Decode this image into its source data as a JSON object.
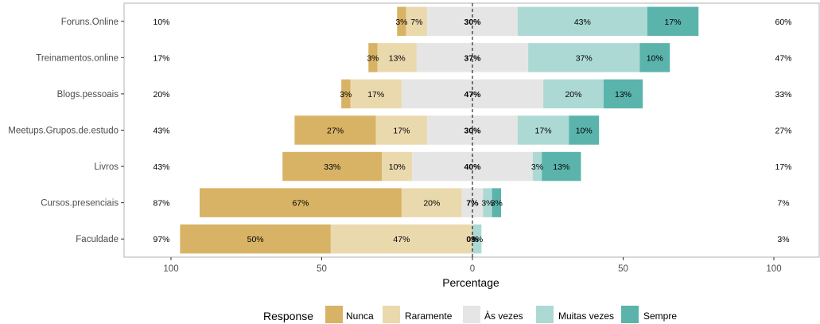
{
  "chart_data": {
    "type": "bar",
    "orientation": "horizontal-diverging",
    "categories": [
      "Foruns.Online",
      "Treinamentos.online",
      "Blogs.pessoais",
      "Meetups.Grupos.de.estudo",
      "Livros",
      "Cursos.presenciais",
      "Faculdade"
    ],
    "series": [
      {
        "name": "Nunca",
        "color": "#D8B365",
        "values": [
          3,
          3,
          3,
          27,
          33,
          67,
          50
        ]
      },
      {
        "name": "Raramente",
        "color": "#EBD9AE",
        "values": [
          7,
          13,
          17,
          17,
          10,
          20,
          47
        ]
      },
      {
        "name": "Às vezes",
        "color": "#E5E5E5",
        "values": [
          30,
          37,
          47,
          30,
          40,
          7,
          0
        ]
      },
      {
        "name": "Muitas vezes",
        "color": "#ADD9D4",
        "values": [
          43,
          37,
          20,
          17,
          3,
          3,
          3
        ]
      },
      {
        "name": "Sempre",
        "color": "#5AB4AC",
        "values": [
          17,
          10,
          13,
          10,
          13,
          3,
          0
        ]
      }
    ],
    "segment_labels": {
      "Nunca": [
        "3%",
        "3%",
        "3%",
        "27%",
        "33%",
        "67%",
        "50%"
      ],
      "Raramente": [
        "7%",
        "13%",
        "17%",
        "17%",
        "10%",
        "20%",
        "47%"
      ],
      "Às vezes": [
        "30%",
        "37%",
        "47%",
        "30%",
        "40%",
        "7%",
        "0%"
      ],
      "Muitas vezes": [
        "43%",
        "37%",
        "20%",
        "17%",
        "3%",
        "3%",
        "3%"
      ],
      "Sempre": [
        "17%",
        "10%",
        "13%",
        "10%",
        "13%",
        "3%",
        ""
      ]
    },
    "left_totals": [
      "10%",
      "17%",
      "20%",
      "43%",
      "43%",
      "87%",
      "97%"
    ],
    "right_totals": [
      "60%",
      "47%",
      "33%",
      "27%",
      "17%",
      "7%",
      "3%"
    ],
    "xlabel": "Percentage",
    "xticks": [
      -100,
      -50,
      0,
      50,
      100
    ],
    "xtick_labels": [
      "100",
      "50",
      "0",
      "50",
      "100"
    ],
    "xlim": [
      -115,
      115
    ],
    "legend_title": "Response",
    "legend_position": "bottom",
    "grid": false
  }
}
